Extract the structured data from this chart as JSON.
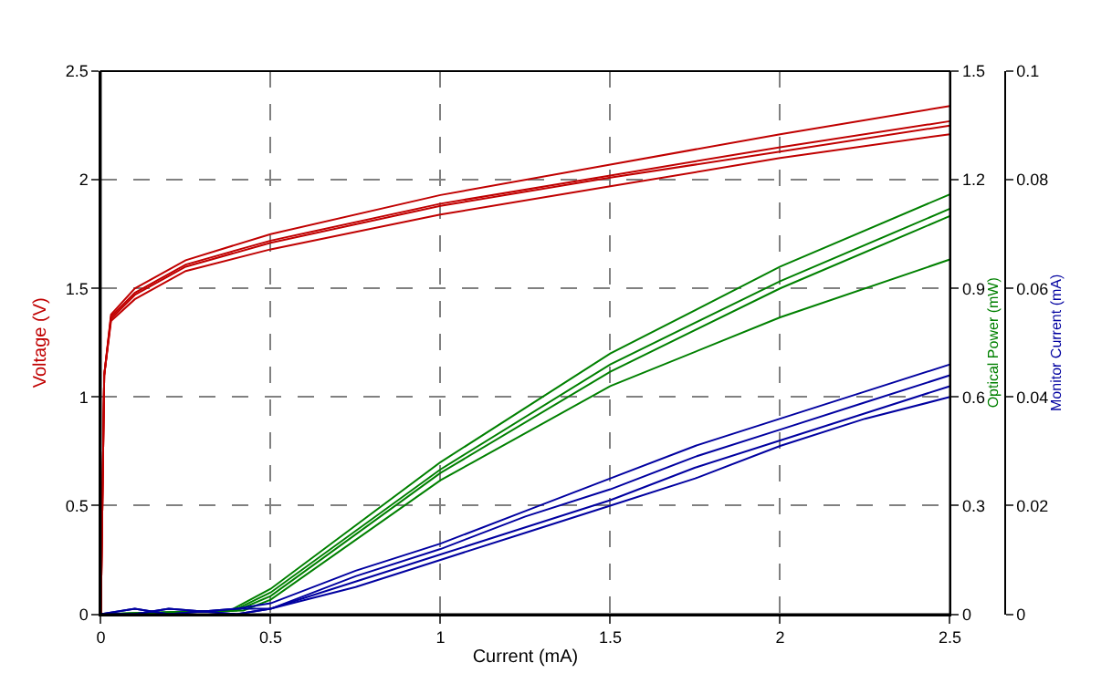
{
  "chart_data": {
    "type": "line",
    "xlabel": "Current (mA)",
    "ylabel": "Voltage (V)",
    "y2label": "Optical Power (mW)",
    "y3label": "Monitor Current (mA)",
    "xlim": [
      0,
      2.5
    ],
    "xticks": [
      0,
      0.5,
      1,
      1.5,
      2,
      2.5
    ],
    "ylim": [
      0,
      2.5
    ],
    "yticks": [
      0,
      0.5,
      1,
      1.5,
      2,
      2.5
    ],
    "y2lim": [
      0,
      1.5
    ],
    "y2ticks": [
      0,
      0.3,
      0.6,
      0.9,
      1.2,
      1.5
    ],
    "y3lim": [
      0,
      0.1
    ],
    "y3ticks": [
      0,
      0.02,
      0.04,
      0.06,
      0.08,
      0.1
    ],
    "grid": true,
    "marker": "none",
    "line_style": "solid",
    "series": [
      {
        "color": "#c00000",
        "x": [
          0,
          0.01,
          0.03,
          0.1,
          0.25,
          0.5,
          1,
          1.5,
          2,
          2.5
        ],
        "values": [
          0,
          1.1,
          1.38,
          1.5,
          1.63,
          1.75,
          1.93,
          2.07,
          2.21,
          2.34
        ]
      },
      {
        "color": "#c00000",
        "x": [
          0,
          0.01,
          0.03,
          0.1,
          0.25,
          0.5,
          1,
          1.5,
          2,
          2.5
        ],
        "values": [
          0,
          1.1,
          1.37,
          1.48,
          1.61,
          1.72,
          1.89,
          2.02,
          2.15,
          2.27
        ]
      },
      {
        "color": "#c00000",
        "x": [
          0,
          0.01,
          0.03,
          0.1,
          0.25,
          0.5,
          1,
          1.5,
          2,
          2.5
        ],
        "values": [
          0,
          1.1,
          1.36,
          1.47,
          1.6,
          1.71,
          1.88,
          2.01,
          2.13,
          2.25
        ]
      },
      {
        "color": "#c00000",
        "x": [
          0,
          0.01,
          0.03,
          0.1,
          0.25,
          0.5,
          1,
          1.5,
          2,
          2.5
        ],
        "values": [
          0,
          1.1,
          1.35,
          1.45,
          1.58,
          1.68,
          1.84,
          1.97,
          2.1,
          2.21
        ]
      },
      {
        "color": "#008000",
        "axis": "y2",
        "x": [
          0,
          0.2,
          0.38,
          0.5,
          1,
          1.5,
          2,
          2.5
        ],
        "values": [
          0,
          0.005,
          0.01,
          0.07,
          0.42,
          0.72,
          0.96,
          1.16
        ]
      },
      {
        "color": "#008000",
        "axis": "y2",
        "x": [
          0,
          0.2,
          0.39,
          0.5,
          1,
          1.5,
          2,
          2.5
        ],
        "values": [
          0,
          0.005,
          0.01,
          0.06,
          0.4,
          0.69,
          0.92,
          1.12
        ]
      },
      {
        "color": "#008000",
        "axis": "y2",
        "x": [
          0,
          0.2,
          0.4,
          0.5,
          1,
          1.5,
          2,
          2.5
        ],
        "values": [
          0,
          0.005,
          0.01,
          0.05,
          0.39,
          0.67,
          0.9,
          1.1
        ]
      },
      {
        "color": "#008000",
        "axis": "y2",
        "x": [
          0,
          0.2,
          0.42,
          0.5,
          1,
          1.5,
          2,
          2.5
        ],
        "values": [
          0,
          0.005,
          0.01,
          0.04,
          0.37,
          0.63,
          0.82,
          0.98
        ]
      },
      {
        "color": "#0000a0",
        "axis": "y3",
        "x": [
          0,
          0.1,
          0.2,
          0.4,
          0.5,
          0.75,
          1,
          1.25,
          1.5,
          1.75,
          2,
          2.25,
          2.5
        ],
        "values": [
          0,
          0.001,
          0.0,
          0.001,
          0.002,
          0.008,
          0.013,
          0.019,
          0.025,
          0.031,
          0.036,
          0.041,
          0.046
        ]
      },
      {
        "color": "#0000a0",
        "axis": "y3",
        "x": [
          0,
          0.1,
          0.2,
          0.4,
          0.5,
          0.75,
          1,
          1.25,
          1.5,
          1.75,
          2,
          2.25,
          2.5
        ],
        "values": [
          0,
          0.0,
          0.001,
          0.0,
          0.001,
          0.007,
          0.012,
          0.018,
          0.023,
          0.029,
          0.034,
          0.039,
          0.044
        ]
      },
      {
        "color": "#0000a0",
        "axis": "y3",
        "x": [
          0,
          0.1,
          0.2,
          0.4,
          0.5,
          0.75,
          1,
          1.25,
          1.5,
          1.75,
          2,
          2.25,
          2.5
        ],
        "values": [
          0,
          0.001,
          0.0,
          0.001,
          0.001,
          0.006,
          0.011,
          0.016,
          0.021,
          0.027,
          0.032,
          0.037,
          0.042
        ]
      },
      {
        "color": "#0000a0",
        "axis": "y3",
        "x": [
          0,
          0.1,
          0.2,
          0.4,
          0.5,
          0.75,
          1,
          1.25,
          1.5,
          1.75,
          2,
          2.25,
          2.5
        ],
        "values": [
          0,
          0.0,
          0.001,
          0.0,
          0.001,
          0.005,
          0.01,
          0.015,
          0.02,
          0.025,
          0.031,
          0.036,
          0.04
        ]
      }
    ]
  }
}
